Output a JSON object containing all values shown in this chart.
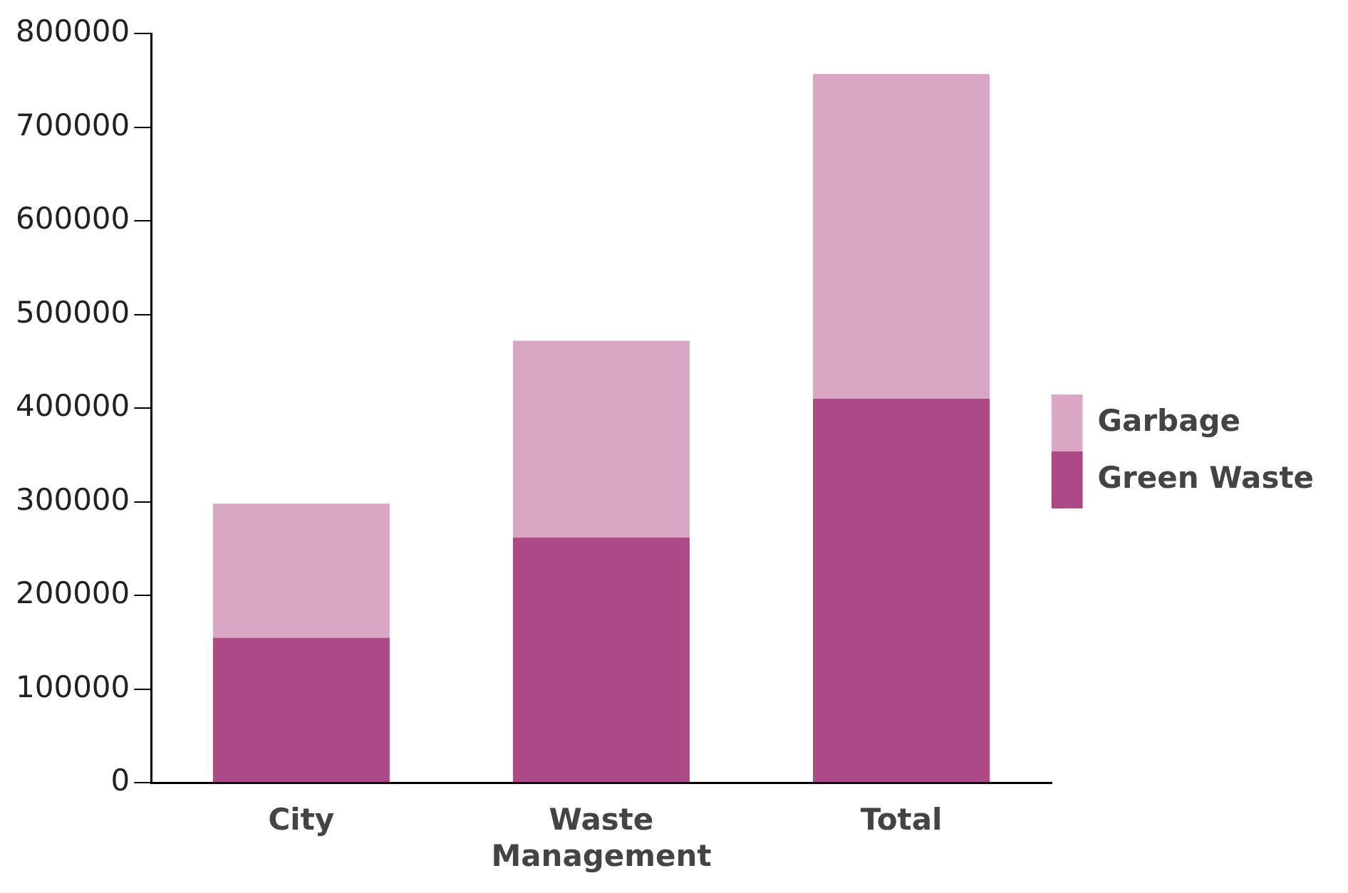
{
  "chart_data": {
    "type": "bar",
    "stacked": true,
    "categories": [
      "City",
      "Waste Management",
      "Total"
    ],
    "series": [
      {
        "name": "Green Waste",
        "color": "#ad4a86",
        "values": [
          155000,
          262000,
          410000
        ]
      },
      {
        "name": "Garbage",
        "color": "#d9a7c4",
        "values": [
          143000,
          210000,
          347000
        ]
      }
    ],
    "ylim": [
      0,
      800000
    ],
    "yticks": [
      0,
      100000,
      200000,
      300000,
      400000,
      500000,
      600000,
      700000,
      800000
    ],
    "grid": false,
    "legend": "right"
  }
}
